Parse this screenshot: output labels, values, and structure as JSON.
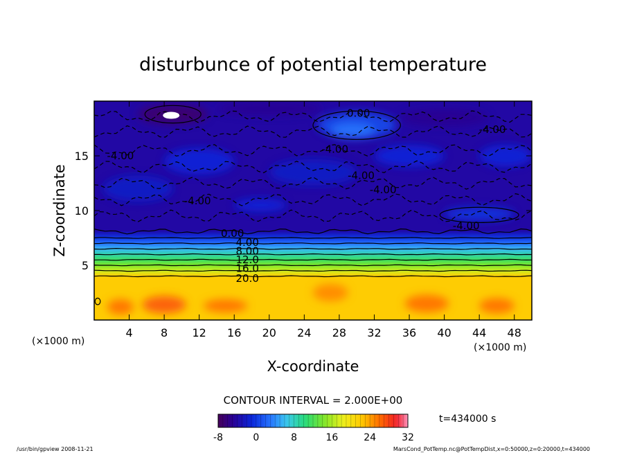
{
  "chart_data": {
    "type": "heatmap",
    "title": "disturbunce of potential temperature",
    "xlabel": "X-coordinate",
    "ylabel": "Z-coordinate",
    "x_unit": "(×1000 m)",
    "y_unit": "(×1000 m)",
    "xlim": [
      0,
      50
    ],
    "ylim": [
      0,
      20
    ],
    "x_ticks": [
      "4",
      "8",
      "12",
      "16",
      "20",
      "24",
      "28",
      "32",
      "36",
      "40",
      "44",
      "48"
    ],
    "y_ticks": [
      "5",
      "10",
      "15"
    ],
    "contour_interval": "CONTOUR INTERVAL = 2.000E+00",
    "time_label": "t=434000 s",
    "colorbar": {
      "min": -8,
      "max": 32,
      "ticks": [
        "-8",
        "0",
        "8",
        "16",
        "24",
        "32"
      ]
    },
    "contour_labels": [
      {
        "text": "0.00",
        "x": 15.8,
        "z": 7.9
      },
      {
        "text": "4.00",
        "x": 17.5,
        "z": 7.1
      },
      {
        "text": "8.00",
        "x": 17.5,
        "z": 6.3
      },
      {
        "text": "12.0",
        "x": 17.5,
        "z": 5.5
      },
      {
        "text": "16.0",
        "x": 17.5,
        "z": 4.7
      },
      {
        "text": "20.0",
        "x": 17.5,
        "z": 3.8
      },
      {
        "text": "-4.00",
        "x": 3.0,
        "z": 15.0
      },
      {
        "text": "-4.00",
        "x": 11.8,
        "z": 10.9
      },
      {
        "text": "-4.00",
        "x": 27.5,
        "z": 15.6
      },
      {
        "text": "-4.00",
        "x": 30.5,
        "z": 13.2
      },
      {
        "text": "-4.00",
        "x": 33.0,
        "z": 11.9
      },
      {
        "text": "-4.00",
        "x": 45.5,
        "z": 17.4
      },
      {
        "text": "-4.00",
        "x": 42.5,
        "z": 8.6
      },
      {
        "text": "0.00",
        "x": 30.2,
        "z": 18.9
      }
    ],
    "approx_field": {
      "surface_layer_top_z": 4.0,
      "surface_layer_value": 22,
      "transition_bottom_z": 4.0,
      "transition_top_z": 8.2,
      "upper_mean_value": -4,
      "min_value": -8,
      "max_value": 24
    }
  },
  "footer": {
    "left": "/usr/bin/gpview   2008-11-21",
    "right": "MarsCond_PotTemp.nc@PotTempDist,x=0:50000,z=0:20000,t=434000"
  }
}
